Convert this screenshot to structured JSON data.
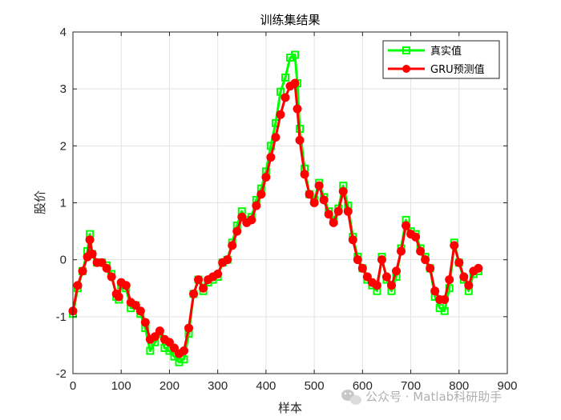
{
  "chart_data": {
    "type": "line",
    "title": "训练集结果",
    "xlabel": "样本",
    "ylabel": "股价",
    "xlim": [
      0,
      900
    ],
    "ylim": [
      -2,
      4
    ],
    "xticks": [
      0,
      100,
      200,
      300,
      400,
      500,
      600,
      700,
      800,
      900
    ],
    "yticks": [
      -2,
      -1,
      0,
      1,
      2,
      3,
      4
    ],
    "grid": true,
    "legend_position": "top-right",
    "x": [
      0,
      10,
      20,
      30,
      35,
      40,
      50,
      60,
      70,
      80,
      90,
      95,
      100,
      110,
      120,
      130,
      140,
      150,
      160,
      170,
      180,
      190,
      200,
      210,
      220,
      230,
      240,
      250,
      260,
      270,
      280,
      290,
      300,
      310,
      320,
      330,
      340,
      350,
      360,
      370,
      380,
      390,
      400,
      410,
      420,
      430,
      440,
      450,
      460,
      465,
      470,
      480,
      490,
      500,
      510,
      520,
      530,
      540,
      550,
      560,
      570,
      580,
      590,
      600,
      610,
      620,
      630,
      640,
      650,
      660,
      670,
      680,
      690,
      700,
      710,
      720,
      730,
      740,
      750,
      760,
      770,
      780,
      790,
      800,
      810,
      820,
      830,
      840
    ],
    "series": [
      {
        "name": "真实值",
        "color": "#00ff00",
        "marker": "square",
        "values": [
          -0.95,
          -0.5,
          -0.2,
          0.15,
          0.45,
          0.1,
          -0.05,
          -0.05,
          -0.1,
          -0.25,
          -0.65,
          -0.7,
          -0.45,
          -0.5,
          -0.85,
          -0.8,
          -0.95,
          -1.2,
          -1.6,
          -1.45,
          -1.3,
          -1.55,
          -1.6,
          -1.7,
          -1.8,
          -1.75,
          -1.3,
          -0.6,
          -0.35,
          -0.55,
          -0.4,
          -0.35,
          -0.3,
          -0.05,
          0.0,
          0.3,
          0.6,
          0.85,
          0.7,
          0.75,
          1.05,
          1.25,
          1.55,
          2.0,
          2.4,
          2.95,
          3.2,
          3.55,
          3.6,
          3.1,
          2.3,
          1.6,
          1.15,
          1.05,
          1.35,
          1.1,
          0.85,
          0.7,
          0.9,
          1.3,
          0.95,
          0.4,
          0.05,
          -0.15,
          -0.35,
          -0.45,
          -0.55,
          0.05,
          -0.35,
          -0.55,
          -0.3,
          0.2,
          0.7,
          0.5,
          0.45,
          0.2,
          0.05,
          -0.15,
          -0.65,
          -0.85,
          -0.9,
          -0.5,
          0.3,
          -0.05,
          -0.35,
          -0.55,
          -0.25,
          -0.2
        ]
      },
      {
        "name": "GRU预测值",
        "color": "#ff0000",
        "marker": "circle",
        "values": [
          -0.9,
          -0.45,
          -0.2,
          0.05,
          0.35,
          0.1,
          -0.05,
          -0.05,
          -0.15,
          -0.3,
          -0.6,
          -0.65,
          -0.4,
          -0.45,
          -0.75,
          -0.8,
          -0.9,
          -1.1,
          -1.4,
          -1.35,
          -1.25,
          -1.4,
          -1.45,
          -1.55,
          -1.65,
          -1.6,
          -1.2,
          -0.6,
          -0.35,
          -0.5,
          -0.35,
          -0.3,
          -0.25,
          -0.05,
          0.0,
          0.25,
          0.5,
          0.75,
          0.65,
          0.7,
          0.95,
          1.15,
          1.45,
          1.8,
          2.15,
          2.55,
          2.85,
          3.05,
          3.1,
          2.65,
          2.1,
          1.5,
          1.15,
          1.0,
          1.3,
          1.05,
          0.8,
          0.65,
          0.85,
          1.2,
          0.85,
          0.35,
          0.0,
          -0.15,
          -0.3,
          -0.4,
          -0.45,
          0.0,
          -0.3,
          -0.45,
          -0.2,
          0.15,
          0.6,
          0.45,
          0.4,
          0.15,
          0.0,
          -0.15,
          -0.55,
          -0.7,
          -0.7,
          -0.35,
          0.25,
          -0.05,
          -0.3,
          -0.45,
          -0.2,
          -0.15
        ]
      }
    ]
  },
  "watermark": {
    "icon": "wechat-icon",
    "text": "公众号 · Matlab科研助手"
  }
}
